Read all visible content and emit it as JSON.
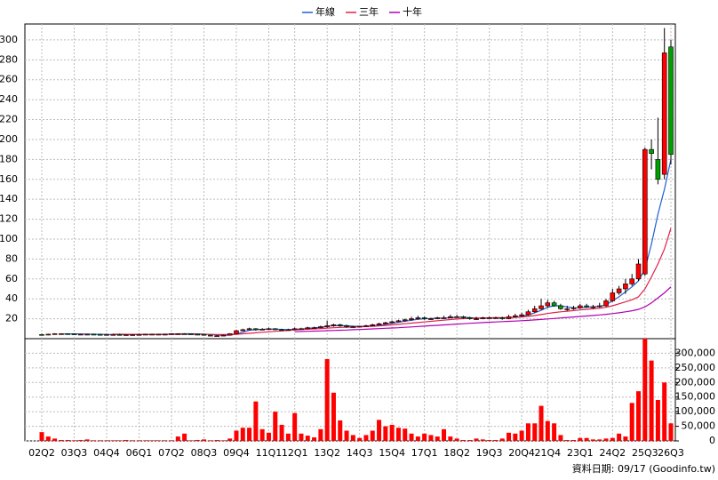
{
  "chart_data": {
    "type": "candlestick",
    "legend_position": "top",
    "footer": "資料日期: 09/17  (Goodinfo.tw)",
    "categories": [
      "02Q2",
      null,
      null,
      null,
      null,
      "03Q3",
      null,
      null,
      null,
      null,
      "04Q4",
      null,
      null,
      null,
      null,
      "06Q1",
      null,
      null,
      null,
      null,
      "07Q2",
      null,
      null,
      null,
      null,
      "08Q3",
      null,
      null,
      null,
      null,
      "09Q4",
      null,
      null,
      null,
      null,
      "11Q1",
      null,
      null,
      null,
      "12Q1",
      null,
      null,
      null,
      null,
      "13Q2",
      null,
      null,
      null,
      null,
      "14Q3",
      null,
      null,
      null,
      null,
      "15Q4",
      null,
      null,
      null,
      null,
      "17Q1",
      null,
      null,
      null,
      null,
      "18Q2",
      null,
      null,
      null,
      null,
      "19Q3",
      null,
      null,
      null,
      null,
      "20Q4",
      null,
      null,
      null,
      "21Q4",
      null,
      null,
      null,
      null,
      "23Q1",
      null,
      null,
      null,
      null,
      "24Q2",
      null,
      null,
      null,
      null,
      "25Q3",
      null,
      null,
      null,
      "26Q3"
    ],
    "open": [
      4.2,
      4,
      4.5,
      5,
      5,
      4.8,
      4.5,
      4.5,
      4.5,
      4.3,
      4.2,
      4.2,
      4.2,
      4,
      4,
      4,
      4.2,
      4.5,
      4.5,
      4.5,
      4.5,
      5,
      5,
      4.8,
      4.5,
      4.3,
      3.5,
      3,
      3,
      3.5,
      5,
      8,
      9,
      10,
      9,
      9.5,
      10,
      9,
      8.5,
      9,
      10,
      10,
      11,
      11,
      12,
      13,
      14,
      13,
      12,
      12,
      12.5,
      13,
      14,
      15,
      16,
      17,
      18,
      19,
      20,
      21,
      20,
      20,
      21,
      21,
      22,
      22,
      21,
      20,
      20,
      21,
      21,
      21,
      20,
      22,
      23,
      24,
      27,
      30,
      33,
      36,
      33,
      30,
      30,
      31,
      33,
      32,
      32,
      33,
      38,
      46,
      50,
      55,
      60,
      65,
      190,
      180,
      165,
      293
    ],
    "high": [
      5,
      5,
      5.5,
      5.5,
      5.5,
      5,
      5,
      5,
      5,
      5,
      5,
      5,
      5,
      4.5,
      4.5,
      5,
      5,
      5,
      5,
      5,
      5.5,
      5.5,
      5.5,
      5,
      5,
      4.5,
      4,
      3.5,
      4,
      5.5,
      9,
      10,
      11,
      10.5,
      10.5,
      11,
      10.5,
      10,
      10,
      11,
      11,
      12,
      12,
      13,
      18,
      15,
      15,
      14,
      13,
      13,
      14,
      15,
      16,
      17,
      18,
      19,
      20,
      22,
      23,
      22,
      21,
      22,
      23,
      24,
      24,
      23,
      22,
      22,
      22,
      22,
      22,
      22,
      24,
      25,
      26,
      29,
      33,
      40,
      39,
      38,
      35,
      33,
      33,
      35,
      35,
      34,
      36,
      40,
      50,
      53,
      60,
      65,
      80,
      192,
      200,
      222,
      312,
      300
    ],
    "low": [
      3.5,
      3.5,
      4,
      4.5,
      4.5,
      4.3,
      4,
      4,
      4,
      4,
      3.8,
      3.8,
      3.8,
      3.5,
      3.5,
      3.5,
      4,
      4,
      4,
      4,
      4.2,
      4.5,
      4.3,
      4,
      3.8,
      3,
      2.5,
      2.5,
      2.8,
      3.3,
      4.5,
      7.5,
      8.5,
      8,
      8.5,
      9,
      8.5,
      8,
      8,
      8.5,
      9.5,
      9.5,
      10.5,
      10.5,
      11,
      12,
      12,
      11,
      11,
      11.5,
      12,
      12.5,
      13.5,
      14.5,
      15.5,
      16.5,
      17,
      18,
      19,
      19,
      19,
      19.5,
      20,
      20.5,
      21,
      20,
      19,
      19,
      19.5,
      20,
      20,
      19,
      19.5,
      21,
      22,
      23,
      26,
      29,
      31,
      32,
      29,
      28,
      29,
      30,
      31,
      30,
      31,
      32,
      37,
      44,
      45,
      53,
      58,
      63,
      170,
      155,
      160,
      175
    ],
    "close": [
      4,
      4.5,
      5,
      5,
      4.8,
      4.5,
      4.5,
      4.5,
      4.3,
      4.2,
      4.2,
      4.2,
      4,
      4,
      4,
      4.2,
      4.5,
      4.5,
      4.5,
      4.5,
      5,
      5,
      4.8,
      4.5,
      4.3,
      3.5,
      3,
      3,
      3.5,
      5,
      8,
      9,
      10,
      9,
      9.5,
      10,
      9,
      8.5,
      9,
      10,
      10,
      11,
      11,
      12,
      13,
      14,
      13,
      12,
      12,
      12.5,
      13,
      14,
      15,
      16,
      17,
      18,
      19,
      20,
      21,
      20,
      20,
      21,
      21,
      22,
      22,
      21,
      20,
      20,
      21,
      21,
      21,
      20,
      22,
      23,
      24,
      27,
      30,
      33,
      36,
      33,
      30,
      30,
      31,
      33,
      32,
      32,
      33,
      38,
      46,
      50,
      55,
      60,
      75,
      190,
      186,
      160,
      287,
      185
    ],
    "volume": [
      30000,
      15000,
      8000,
      3000,
      3000,
      2000,
      3000,
      5000,
      2000,
      2000,
      2000,
      2000,
      2000,
      3000,
      2000,
      2000,
      2000,
      2000,
      2000,
      2000,
      2000,
      15000,
      25000,
      2000,
      3000,
      5000,
      2000,
      3000,
      2000,
      8000,
      35000,
      45000,
      45000,
      135000,
      40000,
      28000,
      100000,
      55000,
      25000,
      95000,
      25000,
      18000,
      12000,
      40000,
      280000,
      165000,
      70000,
      35000,
      20000,
      10000,
      20000,
      35000,
      72000,
      50000,
      55000,
      45000,
      42000,
      25000,
      15000,
      25000,
      20000,
      15000,
      40000,
      15000,
      8000,
      3000,
      3000,
      8000,
      5000,
      3000,
      3000,
      8000,
      28000,
      25000,
      35000,
      60000,
      60000,
      120000,
      68000,
      60000,
      20000,
      3000,
      3000,
      10000,
      10000,
      5000,
      5000,
      8000,
      10000,
      25000,
      15000,
      130000,
      170000,
      350000,
      275000,
      140000,
      200000,
      60000
    ],
    "up_color": "#ff0000",
    "down_color": "#00a000",
    "volume_color": "#ff0000",
    "series": [
      {
        "name": "年線",
        "color": "#1f5fd0",
        "values": [
          null,
          null,
          null,
          4.6,
          4.8,
          4.8,
          4.7,
          4.6,
          4.5,
          4.4,
          4.3,
          4.2,
          4.2,
          4.1,
          4.1,
          4.1,
          4.2,
          4.3,
          4.4,
          4.5,
          4.6,
          4.8,
          4.9,
          4.9,
          4.8,
          4.6,
          4.2,
          3.8,
          3.4,
          3.6,
          4.8,
          6.5,
          8.5,
          9,
          9.4,
          9.6,
          9.5,
          9.3,
          9.1,
          9.4,
          9.6,
          10.3,
          10.8,
          11.5,
          12.3,
          13,
          13,
          13,
          12.5,
          12.3,
          12.4,
          12.9,
          13.6,
          14.5,
          15.5,
          16.5,
          17.5,
          18.5,
          19.5,
          20,
          20.3,
          20.5,
          20.5,
          21,
          21.5,
          21.5,
          21.2,
          20.7,
          20.5,
          20.5,
          20.8,
          20.8,
          21,
          21.5,
          22.3,
          23.8,
          26,
          28.5,
          31.5,
          33,
          33,
          32,
          31,
          31,
          31.5,
          32,
          32.5,
          34,
          38,
          42,
          47,
          52,
          58,
          70,
          95,
          125,
          150,
          180
        ]
      },
      {
        "name": "三年",
        "color": "#e0204a",
        "values": [
          null,
          null,
          null,
          null,
          null,
          null,
          null,
          null,
          null,
          null,
          null,
          4.5,
          4.5,
          4.4,
          4.4,
          4.4,
          4.3,
          4.3,
          4.3,
          4.3,
          4.3,
          4.4,
          4.5,
          4.5,
          4.5,
          4.4,
          4.3,
          4.2,
          4.1,
          4.1,
          4.4,
          4.9,
          5.4,
          5.9,
          6.4,
          6.9,
          7.4,
          7.8,
          8.3,
          8.8,
          9.2,
          9.5,
          9.8,
          10.2,
          10.6,
          11,
          11.3,
          11.5,
          11.7,
          11.9,
          12.1,
          12.4,
          12.8,
          13.3,
          13.8,
          14.4,
          15,
          15.6,
          16.2,
          16.8,
          17.4,
          18,
          18.6,
          19.2,
          19.7,
          20.1,
          20.4,
          20.6,
          20.8,
          21,
          21.1,
          21.1,
          21.2,
          21.4,
          21.8,
          22.4,
          23.2,
          24.2,
          25.3,
          26.2,
          27,
          27.6,
          28.2,
          28.8,
          29.5,
          30,
          30.5,
          31.5,
          33,
          35,
          37,
          39,
          42,
          50,
          62,
          75,
          90,
          111
        ]
      },
      {
        "name": "十年",
        "color": "#b000b0",
        "values": [
          null,
          null,
          null,
          null,
          null,
          null,
          null,
          null,
          null,
          null,
          null,
          null,
          null,
          null,
          null,
          null,
          null,
          null,
          null,
          null,
          null,
          null,
          null,
          null,
          null,
          null,
          null,
          null,
          null,
          null,
          null,
          null,
          null,
          null,
          null,
          null,
          null,
          null,
          null,
          7,
          7.2,
          7.4,
          7.6,
          7.8,
          8,
          8.2,
          8.5,
          8.7,
          9,
          9.2,
          9.5,
          9.8,
          10.1,
          10.4,
          10.7,
          11,
          11.4,
          11.8,
          12.2,
          12.6,
          13,
          13.4,
          13.8,
          14.2,
          14.6,
          15,
          15.4,
          15.8,
          16.2,
          16.5,
          16.8,
          17.1,
          17.4,
          17.7,
          18,
          18.4,
          18.8,
          19.3,
          19.8,
          20.3,
          20.8,
          21.3,
          21.8,
          22.3,
          22.8,
          23.3,
          23.8,
          24.5,
          25.2,
          26,
          27,
          28,
          29.5,
          32,
          36,
          41,
          46,
          52
        ]
      }
    ],
    "ylim": [
      0,
      316
    ],
    "yticks": [
      20,
      40,
      60,
      80,
      100,
      120,
      140,
      160,
      180,
      200,
      220,
      240,
      260,
      280,
      300
    ],
    "y2lim": [
      0,
      350000
    ],
    "y2ticks": [
      0,
      {
        "value": 50000,
        "label": "50,000"
      },
      {
        "value": 100000,
        "label": "100,000"
      },
      {
        "value": 150000,
        "label": "150,000"
      },
      {
        "value": 200000,
        "label": "200,000"
      },
      {
        "value": 250000,
        "label": "250,000"
      },
      {
        "value": 300000,
        "label": "300,000"
      }
    ],
    "grid": true
  }
}
